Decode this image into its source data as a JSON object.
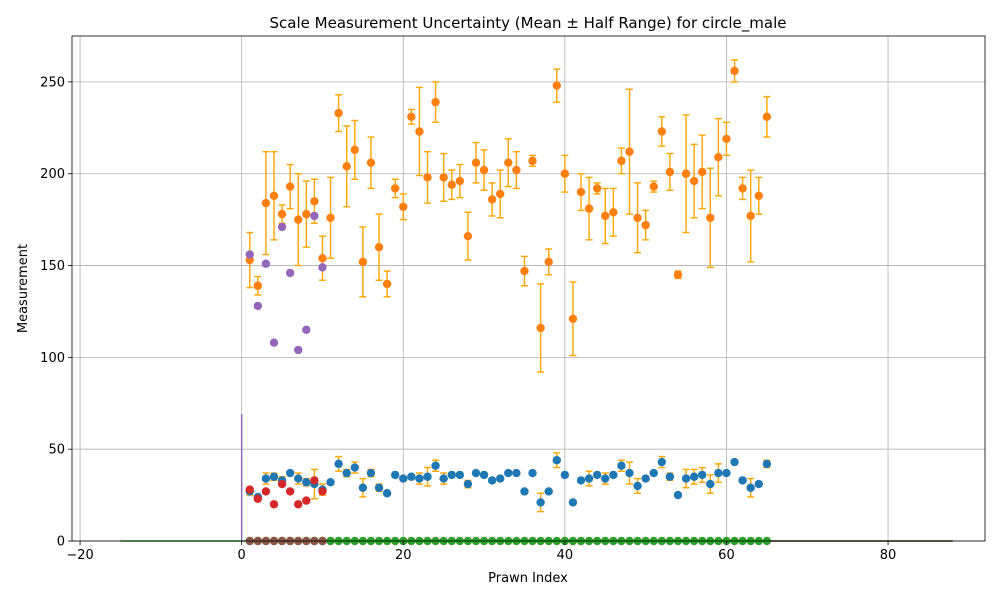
{
  "chart_data": {
    "type": "scatter",
    "title": "Scale Measurement Uncertainty (Mean ± Half Range) for circle_male",
    "xlabel": "Prawn Index",
    "ylabel": "Measurement",
    "xlim": [
      -21,
      92
    ],
    "ylim": [
      0,
      275
    ],
    "xticks": [
      -20,
      0,
      20,
      40,
      60,
      80
    ],
    "yticks": [
      0,
      50,
      100,
      150,
      200,
      250
    ],
    "grid": true,
    "colors": {
      "orange": "#ff7f0e",
      "blue": "#1f77b4",
      "green": "#2ca02c",
      "red": "#d62728",
      "purple": "#9467bd",
      "brown": "#8c564b",
      "errorbar": "#ffa500"
    },
    "series": [
      {
        "color": "#ff7f0e",
        "errorbars": true,
        "points": [
          {
            "x": 1,
            "y": 153,
            "err": 15
          },
          {
            "x": 2,
            "y": 139,
            "err": 5
          },
          {
            "x": 3,
            "y": 184,
            "err": 28
          },
          {
            "x": 4,
            "y": 188,
            "err": 24
          },
          {
            "x": 5,
            "y": 178,
            "err": 5
          },
          {
            "x": 6,
            "y": 193,
            "err": 12
          },
          {
            "x": 7,
            "y": 175,
            "err": 25
          },
          {
            "x": 8,
            "y": 178,
            "err": 18
          },
          {
            "x": 9,
            "y": 185,
            "err": 12
          },
          {
            "x": 10,
            "y": 154,
            "err": 12
          },
          {
            "x": 11,
            "y": 176,
            "err": 22
          },
          {
            "x": 12,
            "y": 233,
            "err": 10
          },
          {
            "x": 13,
            "y": 204,
            "err": 22
          },
          {
            "x": 14,
            "y": 213,
            "err": 16
          },
          {
            "x": 15,
            "y": 152,
            "err": 19
          },
          {
            "x": 16,
            "y": 206,
            "err": 14
          },
          {
            "x": 17,
            "y": 160,
            "err": 18
          },
          {
            "x": 18,
            "y": 140,
            "err": 7
          },
          {
            "x": 19,
            "y": 192,
            "err": 5
          },
          {
            "x": 20,
            "y": 182,
            "err": 7
          },
          {
            "x": 21,
            "y": 231,
            "err": 4
          },
          {
            "x": 22,
            "y": 223,
            "err": 24
          },
          {
            "x": 23,
            "y": 198,
            "err": 14
          },
          {
            "x": 24,
            "y": 239,
            "err": 11
          },
          {
            "x": 25,
            "y": 198,
            "err": 13
          },
          {
            "x": 26,
            "y": 194,
            "err": 8
          },
          {
            "x": 27,
            "y": 196,
            "err": 9
          },
          {
            "x": 28,
            "y": 166,
            "err": 13
          },
          {
            "x": 29,
            "y": 206,
            "err": 11
          },
          {
            "x": 30,
            "y": 202,
            "err": 11
          },
          {
            "x": 31,
            "y": 186,
            "err": 9
          },
          {
            "x": 32,
            "y": 189,
            "err": 13
          },
          {
            "x": 33,
            "y": 206,
            "err": 13
          },
          {
            "x": 34,
            "y": 202,
            "err": 10
          },
          {
            "x": 35,
            "y": 147,
            "err": 8
          },
          {
            "x": 36,
            "y": 207,
            "err": 3
          },
          {
            "x": 37,
            "y": 116,
            "err": 24
          },
          {
            "x": 38,
            "y": 152,
            "err": 7
          },
          {
            "x": 39,
            "y": 248,
            "err": 9
          },
          {
            "x": 40,
            "y": 200,
            "err": 10
          },
          {
            "x": 41,
            "y": 121,
            "err": 20
          },
          {
            "x": 42,
            "y": 190,
            "err": 10
          },
          {
            "x": 43,
            "y": 181,
            "err": 17
          },
          {
            "x": 44,
            "y": 192,
            "err": 3
          },
          {
            "x": 45,
            "y": 177,
            "err": 15
          },
          {
            "x": 46,
            "y": 179,
            "err": 13
          },
          {
            "x": 47,
            "y": 207,
            "err": 7
          },
          {
            "x": 48,
            "y": 212,
            "err": 34
          },
          {
            "x": 49,
            "y": 176,
            "err": 19
          },
          {
            "x": 50,
            "y": 172,
            "err": 8
          },
          {
            "x": 51,
            "y": 193,
            "err": 3
          },
          {
            "x": 52,
            "y": 223,
            "err": 8
          },
          {
            "x": 53,
            "y": 201,
            "err": 10
          },
          {
            "x": 54,
            "y": 145,
            "err": 2
          },
          {
            "x": 55,
            "y": 200,
            "err": 32
          },
          {
            "x": 56,
            "y": 196,
            "err": 20
          },
          {
            "x": 57,
            "y": 201,
            "err": 20
          },
          {
            "x": 58,
            "y": 176,
            "err": 27
          },
          {
            "x": 59,
            "y": 209,
            "err": 21
          },
          {
            "x": 60,
            "y": 219,
            "err": 9
          },
          {
            "x": 61,
            "y": 256,
            "err": 6
          },
          {
            "x": 62,
            "y": 192,
            "err": 6
          },
          {
            "x": 63,
            "y": 177,
            "err": 25
          },
          {
            "x": 64,
            "y": 188,
            "err": 10
          },
          {
            "x": 65,
            "y": 231,
            "err": 11
          }
        ]
      },
      {
        "color": "#1f77b4",
        "errorbars": true,
        "points": [
          {
            "x": 1,
            "y": 27,
            "err": 2
          },
          {
            "x": 2,
            "y": 24,
            "err": 1
          },
          {
            "x": 3,
            "y": 34,
            "err": 3
          },
          {
            "x": 4,
            "y": 35,
            "err": 2
          },
          {
            "x": 5,
            "y": 33,
            "err": 2
          },
          {
            "x": 6,
            "y": 37,
            "err": 1
          },
          {
            "x": 7,
            "y": 34,
            "err": 3
          },
          {
            "x": 8,
            "y": 32,
            "err": 2
          },
          {
            "x": 9,
            "y": 31,
            "err": 8
          },
          {
            "x": 10,
            "y": 28,
            "err": 3
          },
          {
            "x": 11,
            "y": 32,
            "err": 1
          },
          {
            "x": 12,
            "y": 42,
            "err": 4
          },
          {
            "x": 13,
            "y": 37,
            "err": 2
          },
          {
            "x": 14,
            "y": 40,
            "err": 3
          },
          {
            "x": 15,
            "y": 29,
            "err": 5
          },
          {
            "x": 16,
            "y": 37,
            "err": 2
          },
          {
            "x": 17,
            "y": 29,
            "err": 2
          },
          {
            "x": 18,
            "y": 26,
            "err": 1
          },
          {
            "x": 19,
            "y": 36,
            "err": 1
          },
          {
            "x": 20,
            "y": 34,
            "err": 1
          },
          {
            "x": 21,
            "y": 35,
            "err": 1
          },
          {
            "x": 22,
            "y": 34,
            "err": 3
          },
          {
            "x": 23,
            "y": 35,
            "err": 5
          },
          {
            "x": 24,
            "y": 41,
            "err": 3
          },
          {
            "x": 25,
            "y": 34,
            "err": 3
          },
          {
            "x": 26,
            "y": 36,
            "err": 1
          },
          {
            "x": 27,
            "y": 36,
            "err": 1
          },
          {
            "x": 28,
            "y": 31,
            "err": 2
          },
          {
            "x": 29,
            "y": 37,
            "err": 1
          },
          {
            "x": 30,
            "y": 36,
            "err": 1
          },
          {
            "x": 31,
            "y": 33,
            "err": 1
          },
          {
            "x": 32,
            "y": 34,
            "err": 1
          },
          {
            "x": 33,
            "y": 37,
            "err": 1
          },
          {
            "x": 34,
            "y": 37,
            "err": 1
          },
          {
            "x": 35,
            "y": 27,
            "err": 1
          },
          {
            "x": 36,
            "y": 37,
            "err": 1
          },
          {
            "x": 37,
            "y": 21,
            "err": 5
          },
          {
            "x": 38,
            "y": 27,
            "err": 1
          },
          {
            "x": 39,
            "y": 44,
            "err": 4
          },
          {
            "x": 40,
            "y": 36,
            "err": 1
          },
          {
            "x": 41,
            "y": 21,
            "err": 1
          },
          {
            "x": 42,
            "y": 33,
            "err": 1
          },
          {
            "x": 43,
            "y": 34,
            "err": 4
          },
          {
            "x": 44,
            "y": 36,
            "err": 1
          },
          {
            "x": 45,
            "y": 34,
            "err": 3
          },
          {
            "x": 46,
            "y": 36,
            "err": 1
          },
          {
            "x": 47,
            "y": 41,
            "err": 3
          },
          {
            "x": 48,
            "y": 37,
            "err": 6
          },
          {
            "x": 49,
            "y": 30,
            "err": 4
          },
          {
            "x": 50,
            "y": 34,
            "err": 1
          },
          {
            "x": 51,
            "y": 37,
            "err": 1
          },
          {
            "x": 52,
            "y": 43,
            "err": 3
          },
          {
            "x": 53,
            "y": 35,
            "err": 2
          },
          {
            "x": 54,
            "y": 25,
            "err": 1
          },
          {
            "x": 55,
            "y": 34,
            "err": 5
          },
          {
            "x": 56,
            "y": 35,
            "err": 4
          },
          {
            "x": 57,
            "y": 36,
            "err": 4
          },
          {
            "x": 58,
            "y": 31,
            "err": 5
          },
          {
            "x": 59,
            "y": 37,
            "err": 5
          },
          {
            "x": 60,
            "y": 37,
            "err": 1
          },
          {
            "x": 61,
            "y": 43,
            "err": 1
          },
          {
            "x": 62,
            "y": 33,
            "err": 1
          },
          {
            "x": 63,
            "y": 29,
            "err": 5
          },
          {
            "x": 64,
            "y": 31,
            "err": 1
          },
          {
            "x": 65,
            "y": 42,
            "err": 2
          }
        ]
      },
      {
        "color": "#9467bd",
        "errorbars": false,
        "points": [
          {
            "x": 1,
            "y": 156
          },
          {
            "x": 2,
            "y": 128
          },
          {
            "x": 3,
            "y": 151
          },
          {
            "x": 4,
            "y": 108
          },
          {
            "x": 5,
            "y": 171
          },
          {
            "x": 6,
            "y": 146
          },
          {
            "x": 7,
            "y": 104
          },
          {
            "x": 8,
            "y": 115
          },
          {
            "x": 9,
            "y": 177
          },
          {
            "x": 10,
            "y": 149
          }
        ]
      },
      {
        "color": "#d62728",
        "errorbars": false,
        "points": [
          {
            "x": 1,
            "y": 28
          },
          {
            "x": 2,
            "y": 23
          },
          {
            "x": 3,
            "y": 27
          },
          {
            "x": 4,
            "y": 20
          },
          {
            "x": 5,
            "y": 31
          },
          {
            "x": 6,
            "y": 27
          },
          {
            "x": 7,
            "y": 20
          },
          {
            "x": 8,
            "y": 22
          },
          {
            "x": 9,
            "y": 33
          },
          {
            "x": 10,
            "y": 27
          }
        ]
      },
      {
        "color": "#2ca02c",
        "errorbars": false,
        "x_from": 1,
        "x_to": 65,
        "y": 0
      },
      {
        "color": "#8c564b",
        "errorbars": false,
        "x_from": 1,
        "x_to": 10,
        "y": 0
      }
    ],
    "reference_lines": [
      {
        "type": "horizontal",
        "y": 0,
        "x_from": -15,
        "x_to": 88,
        "color": "#2ca02c"
      },
      {
        "type": "horizontal",
        "y": 0,
        "x_from": 65,
        "x_to": 88,
        "color": "#8c564b"
      },
      {
        "type": "vertical",
        "x": 0,
        "y_from": 0,
        "y_to": 69,
        "color": "#9467bd"
      }
    ]
  }
}
